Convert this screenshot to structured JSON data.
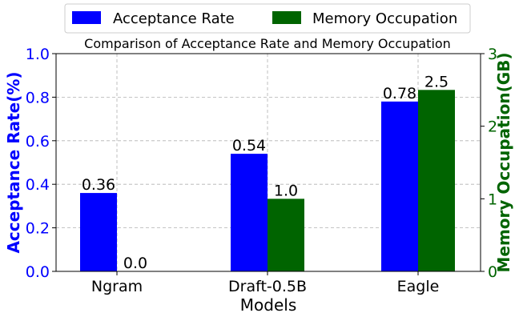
{
  "chart_data": {
    "type": "bar",
    "title": "Comparison of Acceptance Rate and Memory Occupation",
    "xlabel": "Models",
    "categories": [
      "Ngram",
      "Draft-0.5B",
      "Eagle"
    ],
    "left_axis": {
      "label": "Acceptance Rate(%)",
      "ylim": [
        0,
        1.0
      ],
      "ticks": [
        "0.0",
        "0.2",
        "0.4",
        "0.6",
        "0.8",
        "1.0"
      ],
      "color": "#0000ff"
    },
    "right_axis": {
      "label": "Memory Occupation(GB)",
      "ylim": [
        0,
        3
      ],
      "ticks": [
        "0",
        "1",
        "2",
        "3"
      ],
      "color": "#006400"
    },
    "series": [
      {
        "name": "Acceptance Rate",
        "axis": "left",
        "color": "#0000ff",
        "values": [
          0.36,
          0.54,
          0.78
        ],
        "labels": [
          "0.36",
          "0.54",
          "0.78"
        ]
      },
      {
        "name": "Memory Occupation",
        "axis": "right",
        "color": "#006400",
        "values": [
          0.0,
          1.0,
          2.5
        ],
        "labels": [
          "0.0",
          "1.0",
          "2.5"
        ]
      }
    ],
    "grid": true,
    "legend_position": "top-center"
  }
}
